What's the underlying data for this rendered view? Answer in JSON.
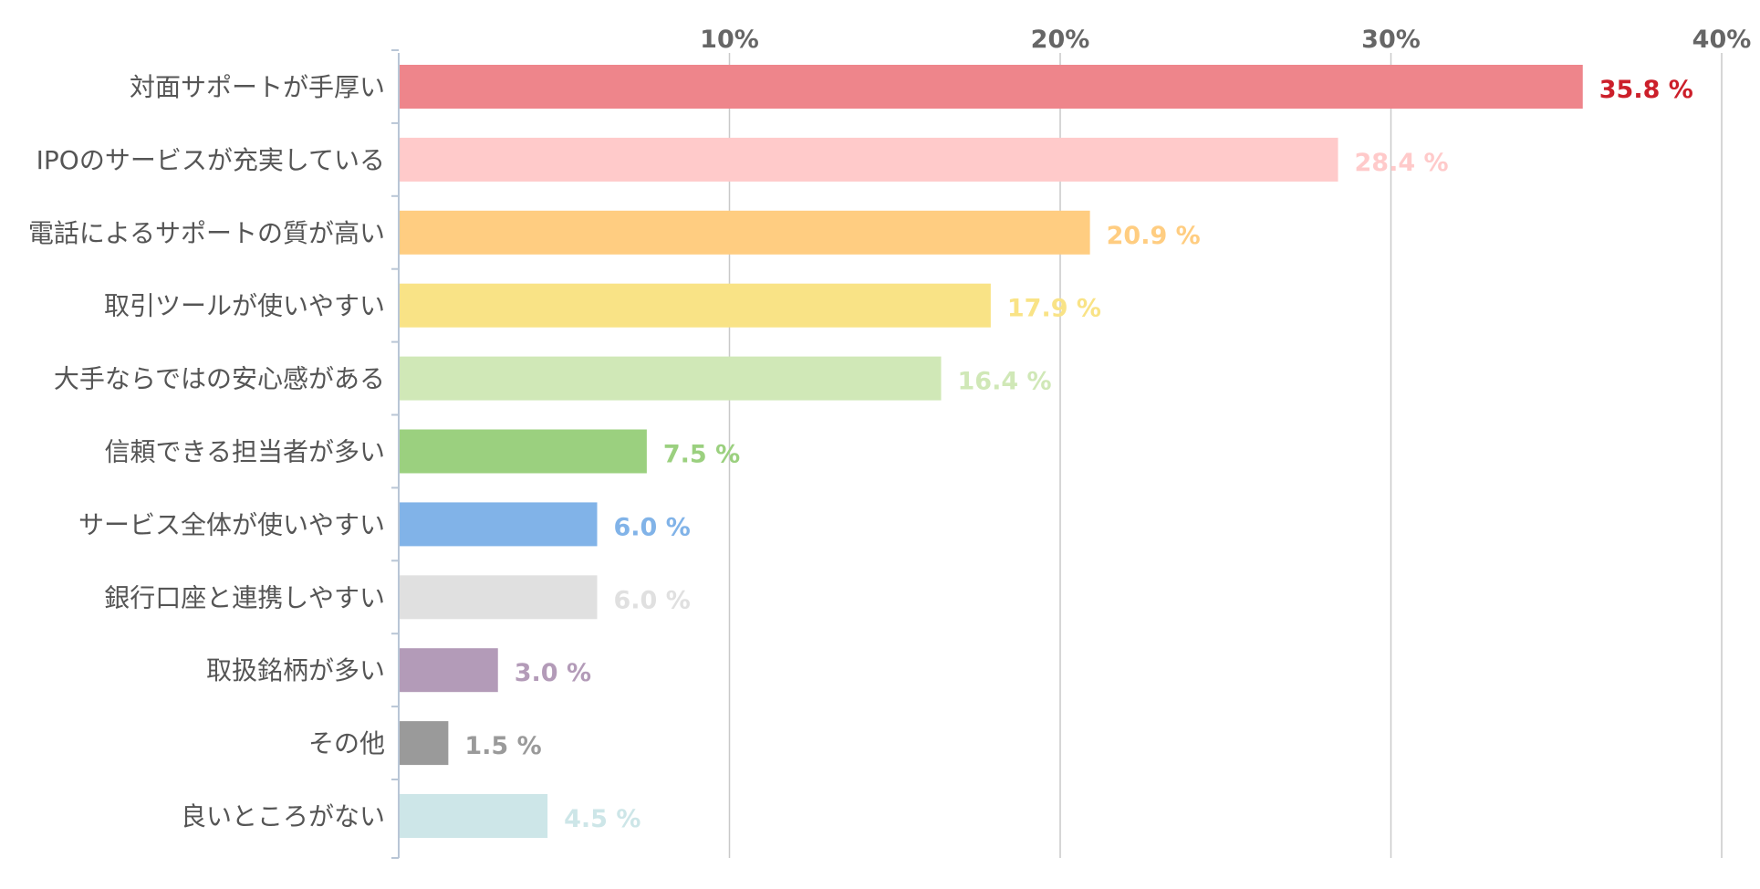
{
  "chart_data": {
    "type": "bar",
    "orientation": "horizontal",
    "title": "",
    "xlabel": "",
    "ylabel": "",
    "xlim": [
      0,
      40
    ],
    "ticks": [
      10,
      20,
      30,
      40
    ],
    "tick_labels": [
      "10%",
      "20%",
      "30%",
      "40%"
    ],
    "grid": true,
    "legend": "none",
    "categories": [
      "対面サポートが手厚い",
      "IPOのサービスが充実している",
      "電話によるサポートの質が高い",
      "取引ツールが使いやすい",
      "大手ならではの安心感がある",
      "信頼できる担当者が多い",
      "サービス全体が使いやすい",
      "銀行口座と連携しやすい",
      "取扱銘柄が多い",
      "その他",
      "良いところがない"
    ],
    "values": [
      35.8,
      28.4,
      20.9,
      17.9,
      16.4,
      7.5,
      6.0,
      6.0,
      3.0,
      1.5,
      4.5
    ],
    "value_labels": [
      "35.8 %",
      "28.4 %",
      "20.9 %",
      "17.9 %",
      "16.4 %",
      "7.5 %",
      "6.0 %",
      "6.0 %",
      "3.0 %",
      "1.5 %",
      "4.5 %"
    ],
    "bar_colors": [
      "#ee858b",
      "#ffcaca",
      "#ffcd81",
      "#f9e386",
      "#d0e8b7",
      "#9bd07f",
      "#81b3e8",
      "#e0e0e0",
      "#b39bb8",
      "#9a9a9a",
      "#cde6e8"
    ],
    "label_colors": [
      "#cc1f2a",
      "#ffcaca",
      "#ffcd81",
      "#f9e386",
      "#d0e8b7",
      "#9bd07f",
      "#81b3e8",
      "#e0e0e0",
      "#b39bb8",
      "#9a9a9a",
      "#cde6e8"
    ],
    "colors": {
      "gridline": "#c9c9c9",
      "axis": "#b9c6d6",
      "tick_text": "#666666",
      "category_text": "#555555"
    }
  }
}
